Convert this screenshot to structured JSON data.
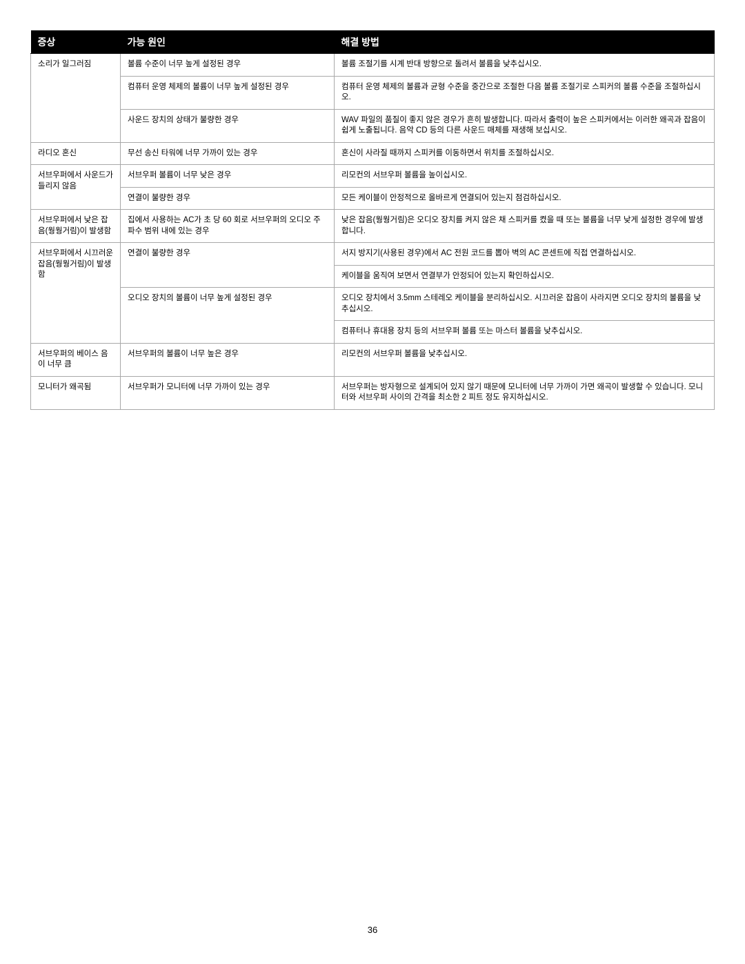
{
  "page_number": "36",
  "colors": {
    "header_bg": "#000000",
    "header_text": "#ffffff",
    "cell_text": "#000000",
    "border": "#a8a8a8",
    "page_bg": "#ffffff"
  },
  "table": {
    "headers": {
      "symptom": "증상",
      "cause": "가능 원인",
      "solution": "해결 방법"
    },
    "rows": [
      {
        "symptom": "소리가 일그러짐",
        "symptom_rowspan": 3,
        "cause": "볼륨 수준이 너무 높게 설정된 경우",
        "solution": "볼륨 조절기를 시계 반대 방향으로 돌려서 볼륨을 낮추십시오."
      },
      {
        "cause": "컴퓨터 운영 체제의 볼륨이 너무 높게 설정된 경우",
        "solution": "컴퓨터 운영 체제의 볼륨과 균형 수준을 중간으로 조절한 다음 볼륨 조절기로 스피커의 볼륨 수준을 조절하십시오."
      },
      {
        "cause": "사운드 장치의 상태가 불량한 경우",
        "solution": "WAV 파일의 품질이 좋지 않은 경우가 흔히 발생합니다. 따라서 출력이 높은 스피커에서는 이러한 왜곡과 잡음이 쉽게 노출됩니다. 음악 CD 등의 다른 사운드 매체를 재생해 보십시오."
      },
      {
        "symptom": "라디오 혼신",
        "symptom_rowspan": 1,
        "cause": "무선 송신 타워에 너무 가까이 있는 경우",
        "solution": "혼신이 사라질 때까지 스피커를 이동하면서 위치를 조절하십시오."
      },
      {
        "symptom": "서브우퍼에서 사운드가 들리지 않음",
        "symptom_rowspan": 2,
        "cause": "서브우퍼 볼륨이 너무 낮은 경우",
        "solution": "리모컨의 서브우퍼 볼륨을 높이십시오."
      },
      {
        "cause": "연결이 불량한 경우",
        "solution": "모든 케이블이 안정적으로 올바르게 연결되어 있는지 점검하십시오."
      },
      {
        "symptom": "서브우퍼에서 낮은 잡음(웡웡거림)이 발생함",
        "symptom_rowspan": 1,
        "cause": "집에서 사용하는 AC가 초 당 60 회로 서브우퍼의 오디오 주파수 범위 내에 있는 경우",
        "solution": "낮은 잡음(웡웡거림)은 오디오 장치를 켜지 않은 채 스피커를 켰을 때 또는 볼륨을 너무 낮게 설정한 경우에 발생합니다."
      },
      {
        "symptom": "서브우퍼에서 시끄러운 잡음(웡웡거림)이 발생함",
        "symptom_rowspan": 4,
        "cause": "연결이 불량한 경우",
        "cause_rowspan": 2,
        "solution": "서지 방지기(사용된 경우)에서 AC 전원 코드를 뽑아 벽의 AC 콘센트에 직접 연결하십시오."
      },
      {
        "solution": "케이블을 움직여 보면서 연결부가 안정되어 있는지 확인하십시오."
      },
      {
        "cause": "오디오 장치의 볼륨이 너무 높게 설정된 경우",
        "cause_rowspan": 2,
        "solution": "오디오 장치에서 3.5mm 스테레오 케이블을 분리하십시오. 시끄러운 잡음이 사라지면 오디오 장치의 볼륨을 낮추십시오."
      },
      {
        "solution": "컴퓨터나 휴대용 장치 등의 서브우퍼 볼륨 또는 마스터 볼륨을 낮추십시오."
      },
      {
        "symptom": "서브우퍼의 베이스 음이 너무 큼",
        "symptom_rowspan": 1,
        "cause": "서브우퍼의 볼륨이 너무 높은 경우",
        "solution": "리모컨의 서브우퍼 볼륨을 낮추십시오."
      },
      {
        "symptom": "모니터가 왜곡됨",
        "symptom_rowspan": 1,
        "cause": "서브우퍼가 모니터에 너무 가까이 있는 경우",
        "solution": "서브우퍼는 방자형으로 설계되어 있지 않기 때문에 모니터에 너무 가까이 가면 왜곡이 발생할 수 있습니다. 모니터와 서브우퍼 사이의 간격을 최소한 2 피트 정도 유지하십시오."
      }
    ]
  }
}
